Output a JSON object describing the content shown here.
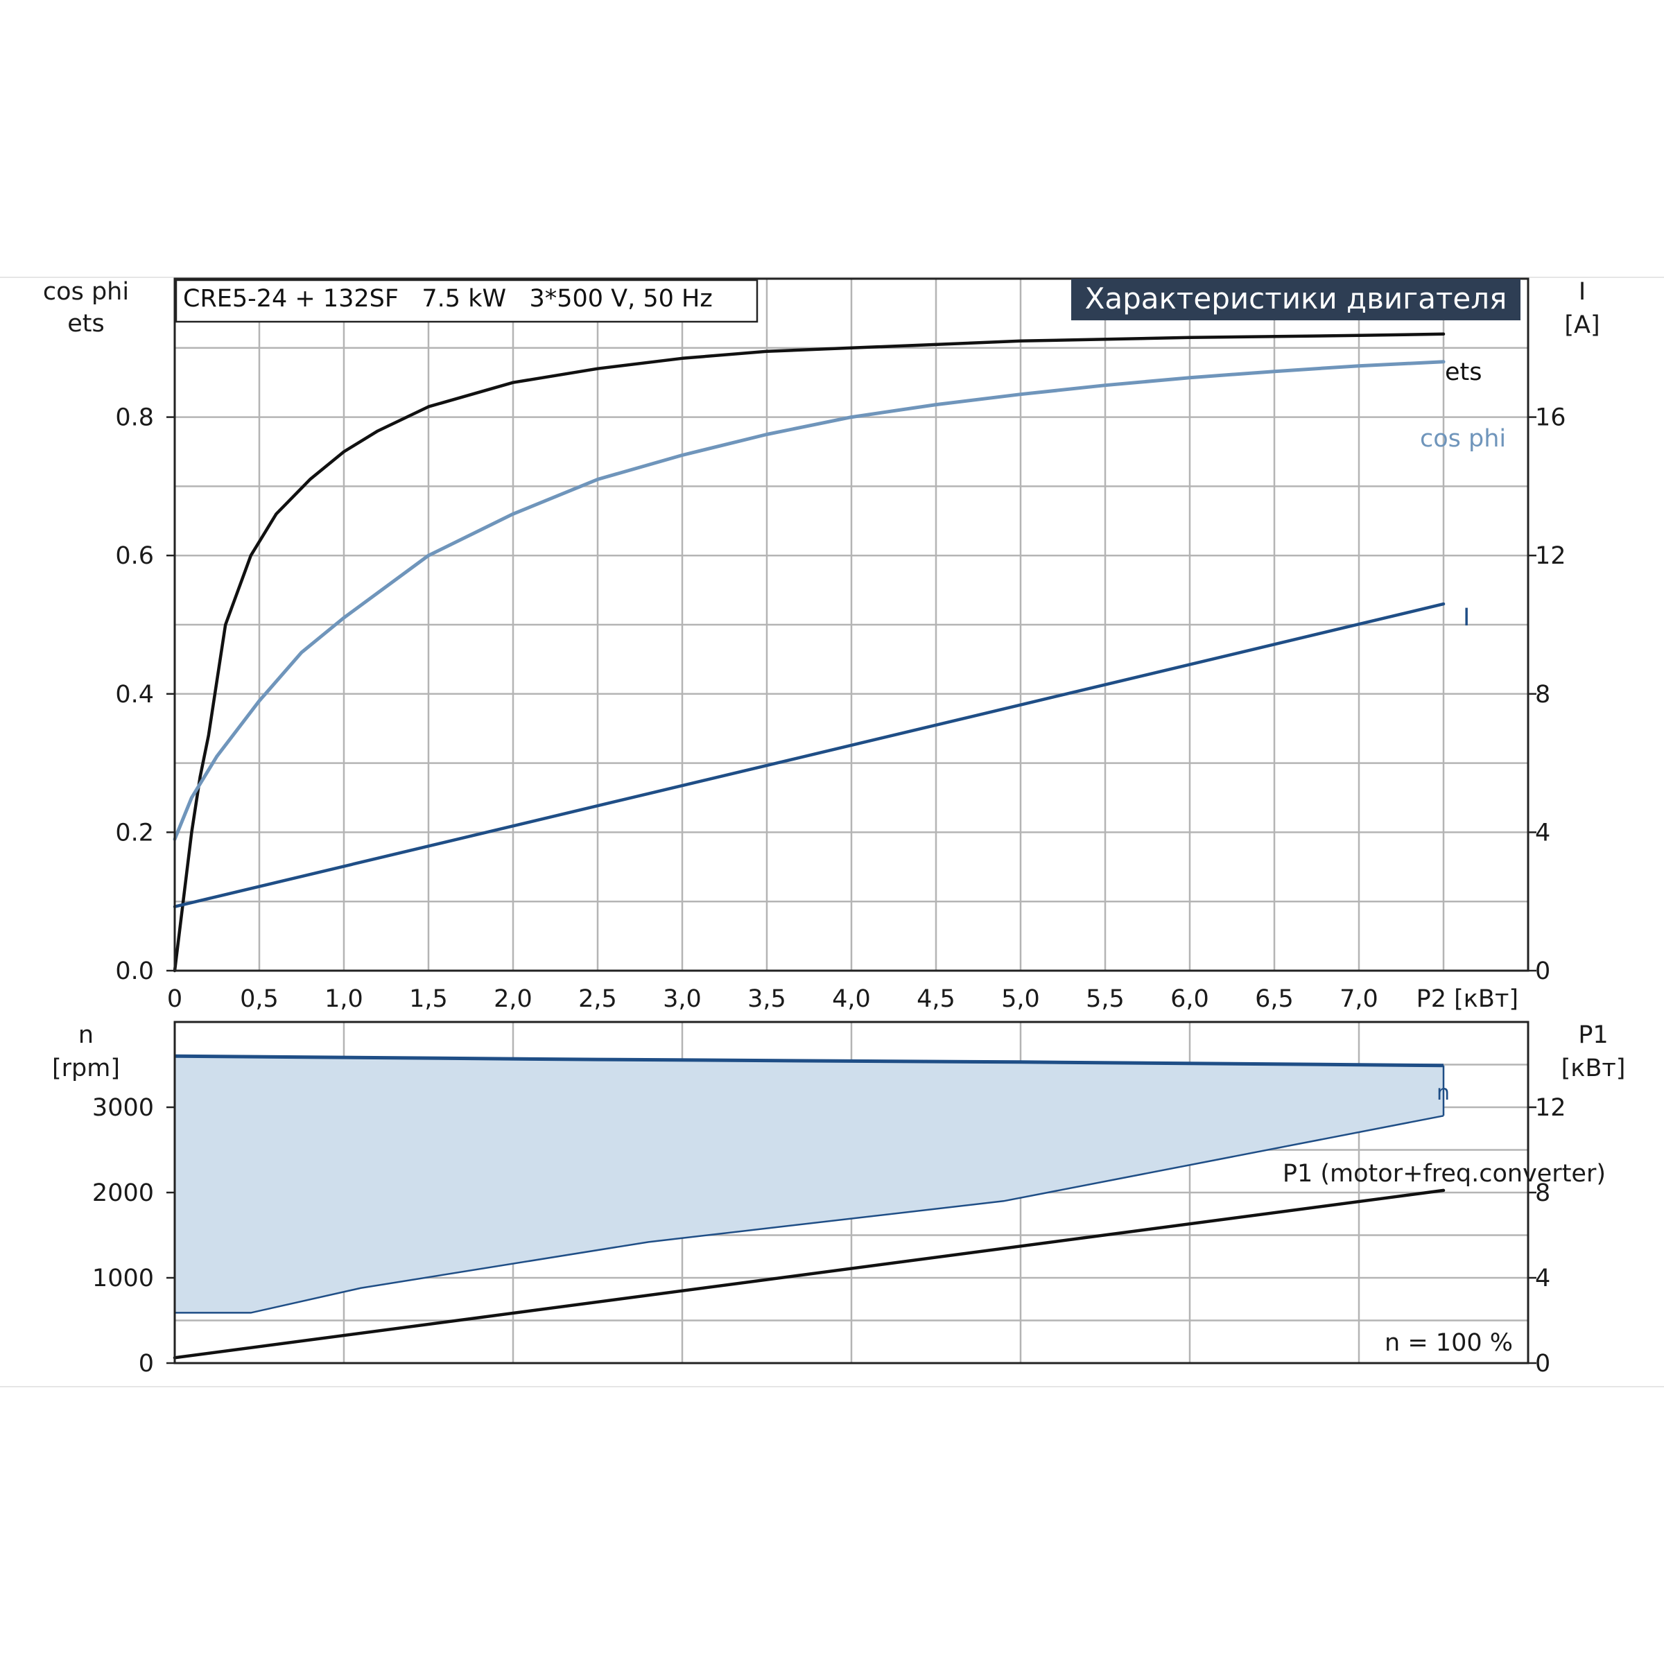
{
  "header": {
    "model_text": "CRE5-24 + 132SF   7.5 kW   3*500 V, 50 Hz",
    "badge_text": "Характеристики двигателя"
  },
  "colors": {
    "eta": "#111111",
    "cosphi": "#6f95bb",
    "current": "#1f4e86",
    "speed": "#1f4e86",
    "speed_fill": "#cfdeec",
    "p1": "#111111",
    "badge_bg": "#2e3e54",
    "grid": "#b4b4b4"
  },
  "chart_data": [
    {
      "type": "line",
      "name": "upper",
      "xlim": [
        0,
        7.5
      ],
      "x_ticks": [
        "0",
        "0,5",
        "1,0",
        "1,5",
        "2,0",
        "2,5",
        "3,0",
        "3,5",
        "4,0",
        "4,5",
        "5,0",
        "5,5",
        "6,0",
        "6,5",
        "7,0"
      ],
      "x_unit_label": "P2 [кВт]",
      "left_axis": {
        "label_line1": "cos phi",
        "label_line2": "ets",
        "ticks": [
          "0.0",
          "0.2",
          "0.4",
          "0.6",
          "0.8"
        ],
        "ylim": [
          0,
          1.0
        ]
      },
      "right_axis": {
        "label_line1": "I",
        "label_line2": "[A]",
        "ticks": [
          "0",
          "4",
          "8",
          "12",
          "16"
        ],
        "ylim": [
          0,
          20
        ]
      },
      "series": [
        {
          "name": "ets",
          "axis": "left",
          "color": "#111111",
          "x": [
            0,
            0.05,
            0.1,
            0.15,
            0.2,
            0.3,
            0.45,
            0.6,
            0.8,
            1.0,
            1.2,
            1.5,
            2.0,
            2.5,
            3.0,
            3.5,
            4.0,
            5.0,
            6.0,
            7.0,
            7.5
          ],
          "y": [
            0.0,
            0.1,
            0.2,
            0.28,
            0.34,
            0.5,
            0.6,
            0.66,
            0.71,
            0.75,
            0.78,
            0.815,
            0.85,
            0.87,
            0.885,
            0.895,
            0.9,
            0.91,
            0.915,
            0.918,
            0.92
          ]
        },
        {
          "name": "cos phi",
          "axis": "left",
          "color": "#6f95bb",
          "x": [
            0,
            0.1,
            0.25,
            0.5,
            0.75,
            1.0,
            1.5,
            2.0,
            2.5,
            3.0,
            3.5,
            4.0,
            4.5,
            5.0,
            5.5,
            6.0,
            6.5,
            7.0,
            7.5
          ],
          "y": [
            0.19,
            0.25,
            0.31,
            0.39,
            0.46,
            0.51,
            0.6,
            0.66,
            0.71,
            0.745,
            0.775,
            0.8,
            0.818,
            0.833,
            0.846,
            0.857,
            0.866,
            0.874,
            0.88
          ]
        },
        {
          "name": "I",
          "axis": "right",
          "color": "#1f4e86",
          "x": [
            0,
            7.5
          ],
          "y": [
            1.85,
            10.6
          ]
        }
      ]
    },
    {
      "type": "area",
      "name": "lower",
      "xlim": [
        0,
        7.5
      ],
      "left_axis": {
        "label_line1": "n",
        "label_line2": "[rpm]",
        "ticks": [
          "0",
          "1000",
          "2000",
          "3000"
        ],
        "ylim": [
          0,
          4000
        ]
      },
      "right_axis": {
        "label_line1": "P1",
        "label_line2": "[кВт]",
        "ticks": [
          "0",
          "4",
          "8",
          "12"
        ],
        "ylim": [
          0,
          16
        ]
      },
      "speed_range": {
        "name": "n",
        "x_max": [
          0,
          2.5,
          5.0,
          7.5
        ],
        "n_max": [
          3600,
          3560,
          3530,
          3490
        ],
        "x_min": [
          0,
          0.45,
          1.1,
          2.8,
          4.9,
          7.5
        ],
        "n_min": [
          590,
          590,
          880,
          1420,
          1900,
          2900
        ]
      },
      "series": [
        {
          "name": "P1 (motor+freq.converter)",
          "axis": "right",
          "color": "#111111",
          "x": [
            0,
            7.5
          ],
          "y": [
            0.25,
            8.1
          ]
        }
      ],
      "annotation": "n = 100 %"
    }
  ]
}
